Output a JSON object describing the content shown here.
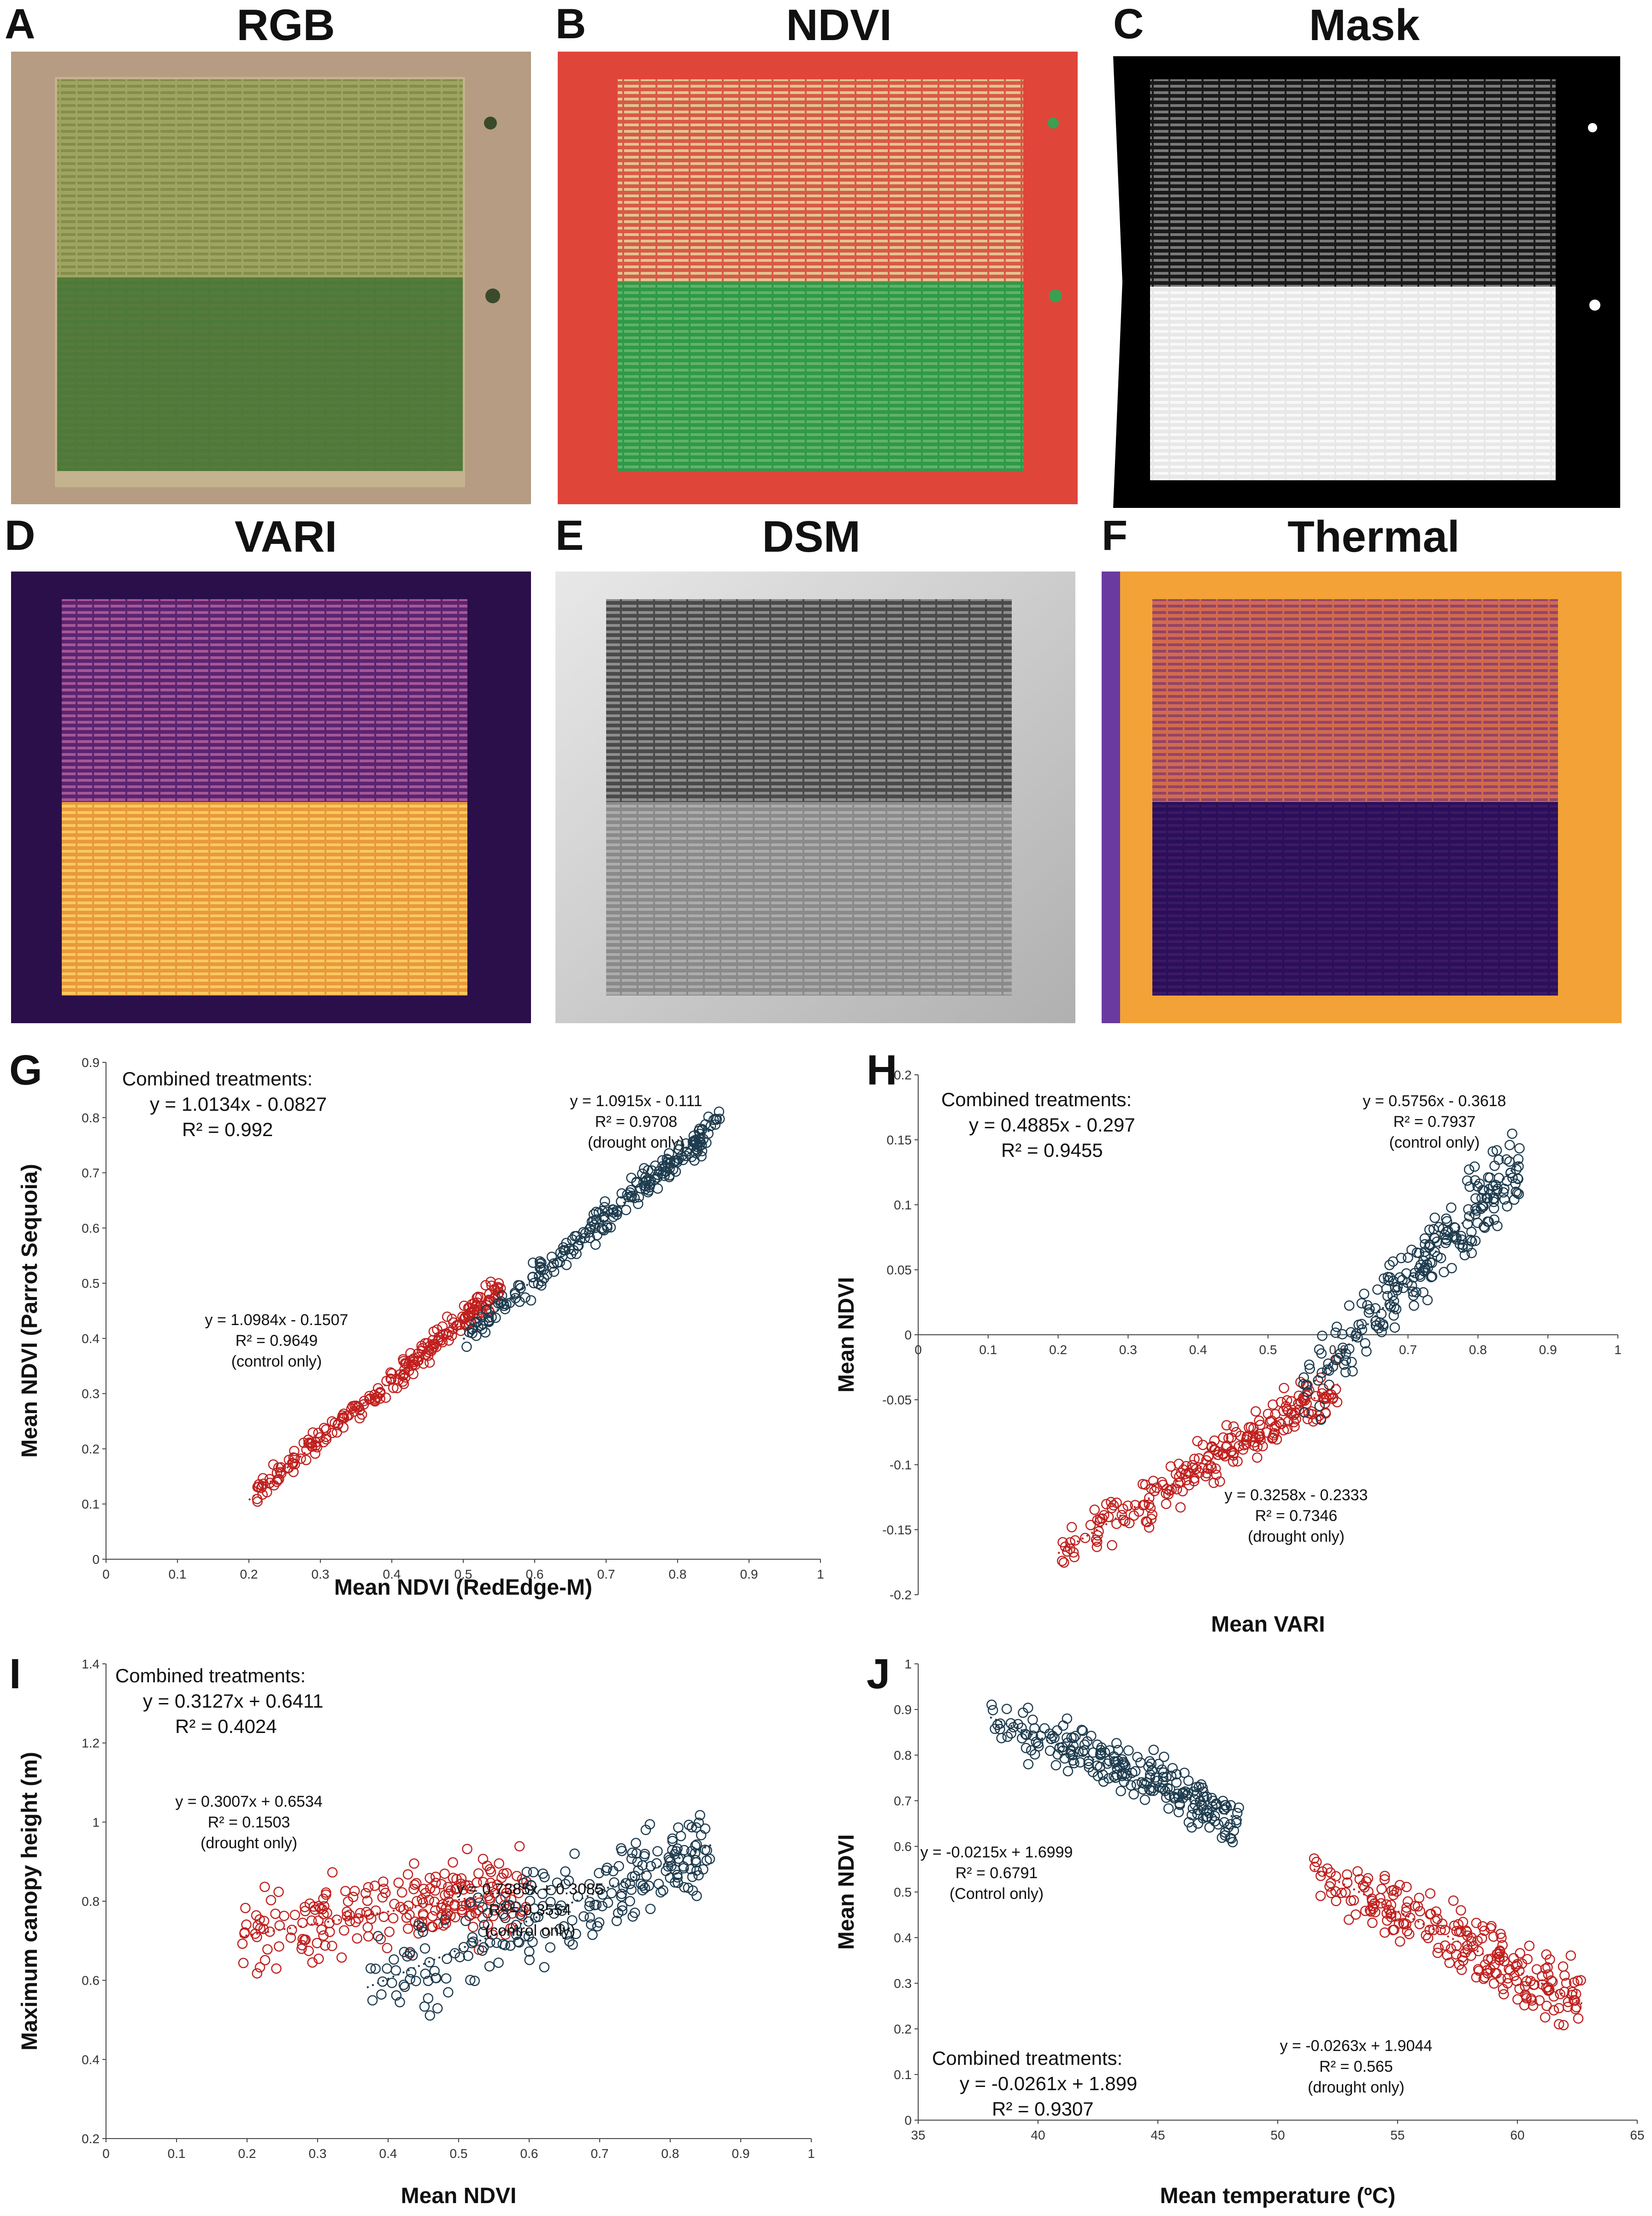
{
  "panels": {
    "A": {
      "letter": "A",
      "title": "RGB"
    },
    "B": {
      "letter": "B",
      "title": "NDVI"
    },
    "C": {
      "letter": "C",
      "title": "Mask"
    },
    "D": {
      "letter": "D",
      "title": "VARI"
    },
    "E": {
      "letter": "E",
      "title": "DSM"
    },
    "F": {
      "letter": "F",
      "title": "Thermal"
    },
    "G": {
      "letter": "G"
    },
    "H": {
      "letter": "H"
    },
    "I": {
      "letter": "I"
    },
    "J": {
      "letter": "J"
    }
  },
  "colors": {
    "drought": "#c0201e",
    "control": "#1e3c4f"
  },
  "chart_data": [
    {
      "id": "G",
      "type": "scatter",
      "xlabel": "Mean NDVI (RedEdge-M)",
      "ylabel": "Mean NDVI (Parrot Sequoia)",
      "xlim": [
        0,
        1
      ],
      "ylim": [
        0,
        0.9
      ],
      "xticks": [
        "0",
        "0.1",
        "0.2",
        "0.3",
        "0.4",
        "0.5",
        "0.6",
        "0.7",
        "0.8",
        "0.9",
        "1"
      ],
      "yticks": [
        "0",
        "0.1",
        "0.2",
        "0.3",
        "0.4",
        "0.5",
        "0.6",
        "0.7",
        "0.8",
        "0.9"
      ],
      "combined": {
        "label": "Combined treatments:",
        "equation": "y = 1.0134x - 0.0827",
        "r2": "R² = 0.992"
      },
      "series": [
        {
          "name": "drought only",
          "color": "drought",
          "slope": 1.0915,
          "intercept": -0.111,
          "xrange": [
            0.2,
            0.56
          ],
          "equation": "y = 1.0915x - 0.111",
          "r2": "R² = 0.9708",
          "label": "(drought only)",
          "spread": 0.015,
          "n": 230
        },
        {
          "name": "control only",
          "color": "control",
          "slope": 1.0984,
          "intercept": -0.1507,
          "xrange": [
            0.5,
            0.86
          ],
          "equation": "y = 1.0984x - 0.1507",
          "r2": "R² = 0.9649",
          "label": "(control only)",
          "spread": 0.02,
          "n": 230
        }
      ]
    },
    {
      "id": "H",
      "type": "scatter",
      "xlabel": "Mean VARI",
      "ylabel": "Mean NDVI",
      "xlim": [
        0,
        1
      ],
      "ylim": [
        -0.2,
        0.2
      ],
      "xticks": [
        "0",
        "0.1",
        "0.2",
        "0.3",
        "0.4",
        "0.5",
        "0.6",
        "0.7",
        "0.8",
        "0.9",
        "1"
      ],
      "yticks": [
        "-0.2",
        "-0.15",
        "-0.1",
        "-0.05",
        "0",
        "0.05",
        "0.1",
        "0.15",
        "0.2"
      ],
      "combined": {
        "label": "Combined treatments:",
        "equation": "y = 0.4885x - 0.297",
        "r2": "R² = 0.9455"
      },
      "series": [
        {
          "name": "drought only",
          "color": "drought",
          "slope": 0.3258,
          "intercept": -0.2333,
          "xrange": [
            0.2,
            0.6
          ],
          "equation": "y = 0.3258x - 0.2333",
          "r2": "R² = 0.7346",
          "label": "(drought only)",
          "spread": 0.012,
          "n": 230
        },
        {
          "name": "control only",
          "color": "control",
          "slope": 0.5756,
          "intercept": -0.3618,
          "xrange": [
            0.55,
            0.86
          ],
          "equation": "y = 0.5756x - 0.3618",
          "r2": "R² = 0.7937",
          "label": "(control only)",
          "spread": 0.02,
          "n": 230
        }
      ]
    },
    {
      "id": "I",
      "type": "scatter",
      "xlabel": "Mean NDVI",
      "ylabel": "Maximum canopy height (m)",
      "xlim": [
        0,
        1
      ],
      "ylim": [
        0.2,
        1.4
      ],
      "xticks": [
        "0",
        "0.1",
        "0.2",
        "0.3",
        "0.4",
        "0.5",
        "0.6",
        "0.7",
        "0.8",
        "0.9",
        "1"
      ],
      "yticks": [
        "0.2",
        "0.4",
        "0.6",
        "0.8",
        "1",
        "1.2",
        "1.4"
      ],
      "combined": {
        "label": "Combined treatments:",
        "equation": "y = 0.3127x + 0.6411",
        "r2": "R² = 0.4024"
      },
      "series": [
        {
          "name": "drought only",
          "color": "drought",
          "slope": 0.3007,
          "intercept": 0.6534,
          "xrange": [
            0.19,
            0.6
          ],
          "equation": "y = 0.3007x + 0.6534",
          "r2": "R² = 0.1503",
          "label": "(drought only)",
          "spread": 0.07,
          "n": 230
        },
        {
          "name": "control only",
          "color": "control",
          "slope": 0.7385,
          "intercept": 0.3085,
          "xrange": [
            0.37,
            0.86
          ],
          "equation": "y = 0.7385x + 0.3085",
          "r2": "R² = 0.3554",
          "label": "(control only)",
          "spread": 0.08,
          "n": 230
        }
      ]
    },
    {
      "id": "J",
      "type": "scatter",
      "xlabel": "Mean temperature (ºC)",
      "ylabel": "Mean NDVI",
      "xlim": [
        35,
        65
      ],
      "ylim": [
        0,
        1
      ],
      "xticks": [
        "35",
        "40",
        "45",
        "50",
        "55",
        "60",
        "65"
      ],
      "yticks": [
        "0",
        "0.1",
        "0.2",
        "0.3",
        "0.4",
        "0.5",
        "0.6",
        "0.7",
        "0.8",
        "0.9",
        "1"
      ],
      "combined": {
        "label": "Combined treatments:",
        "equation": "y = -0.0261x + 1.899",
        "r2": "R² = 0.9307"
      },
      "series": [
        {
          "name": "control only",
          "color": "control",
          "slope": -0.0215,
          "intercept": 1.6999,
          "xrange": [
            38,
            48.5
          ],
          "equation": "y = -0.0215x + 1.6999",
          "r2": "R² = 0.6791",
          "label": "(Control only)",
          "spread": 0.04,
          "n": 230
        },
        {
          "name": "drought only",
          "color": "drought",
          "slope": -0.0263,
          "intercept": 1.9044,
          "xrange": [
            51.5,
            62.7
          ],
          "equation": "y = -0.0263x + 1.9044",
          "r2": "R² = 0.565",
          "label": "(drought only)",
          "spread": 0.05,
          "n": 230
        }
      ]
    }
  ]
}
